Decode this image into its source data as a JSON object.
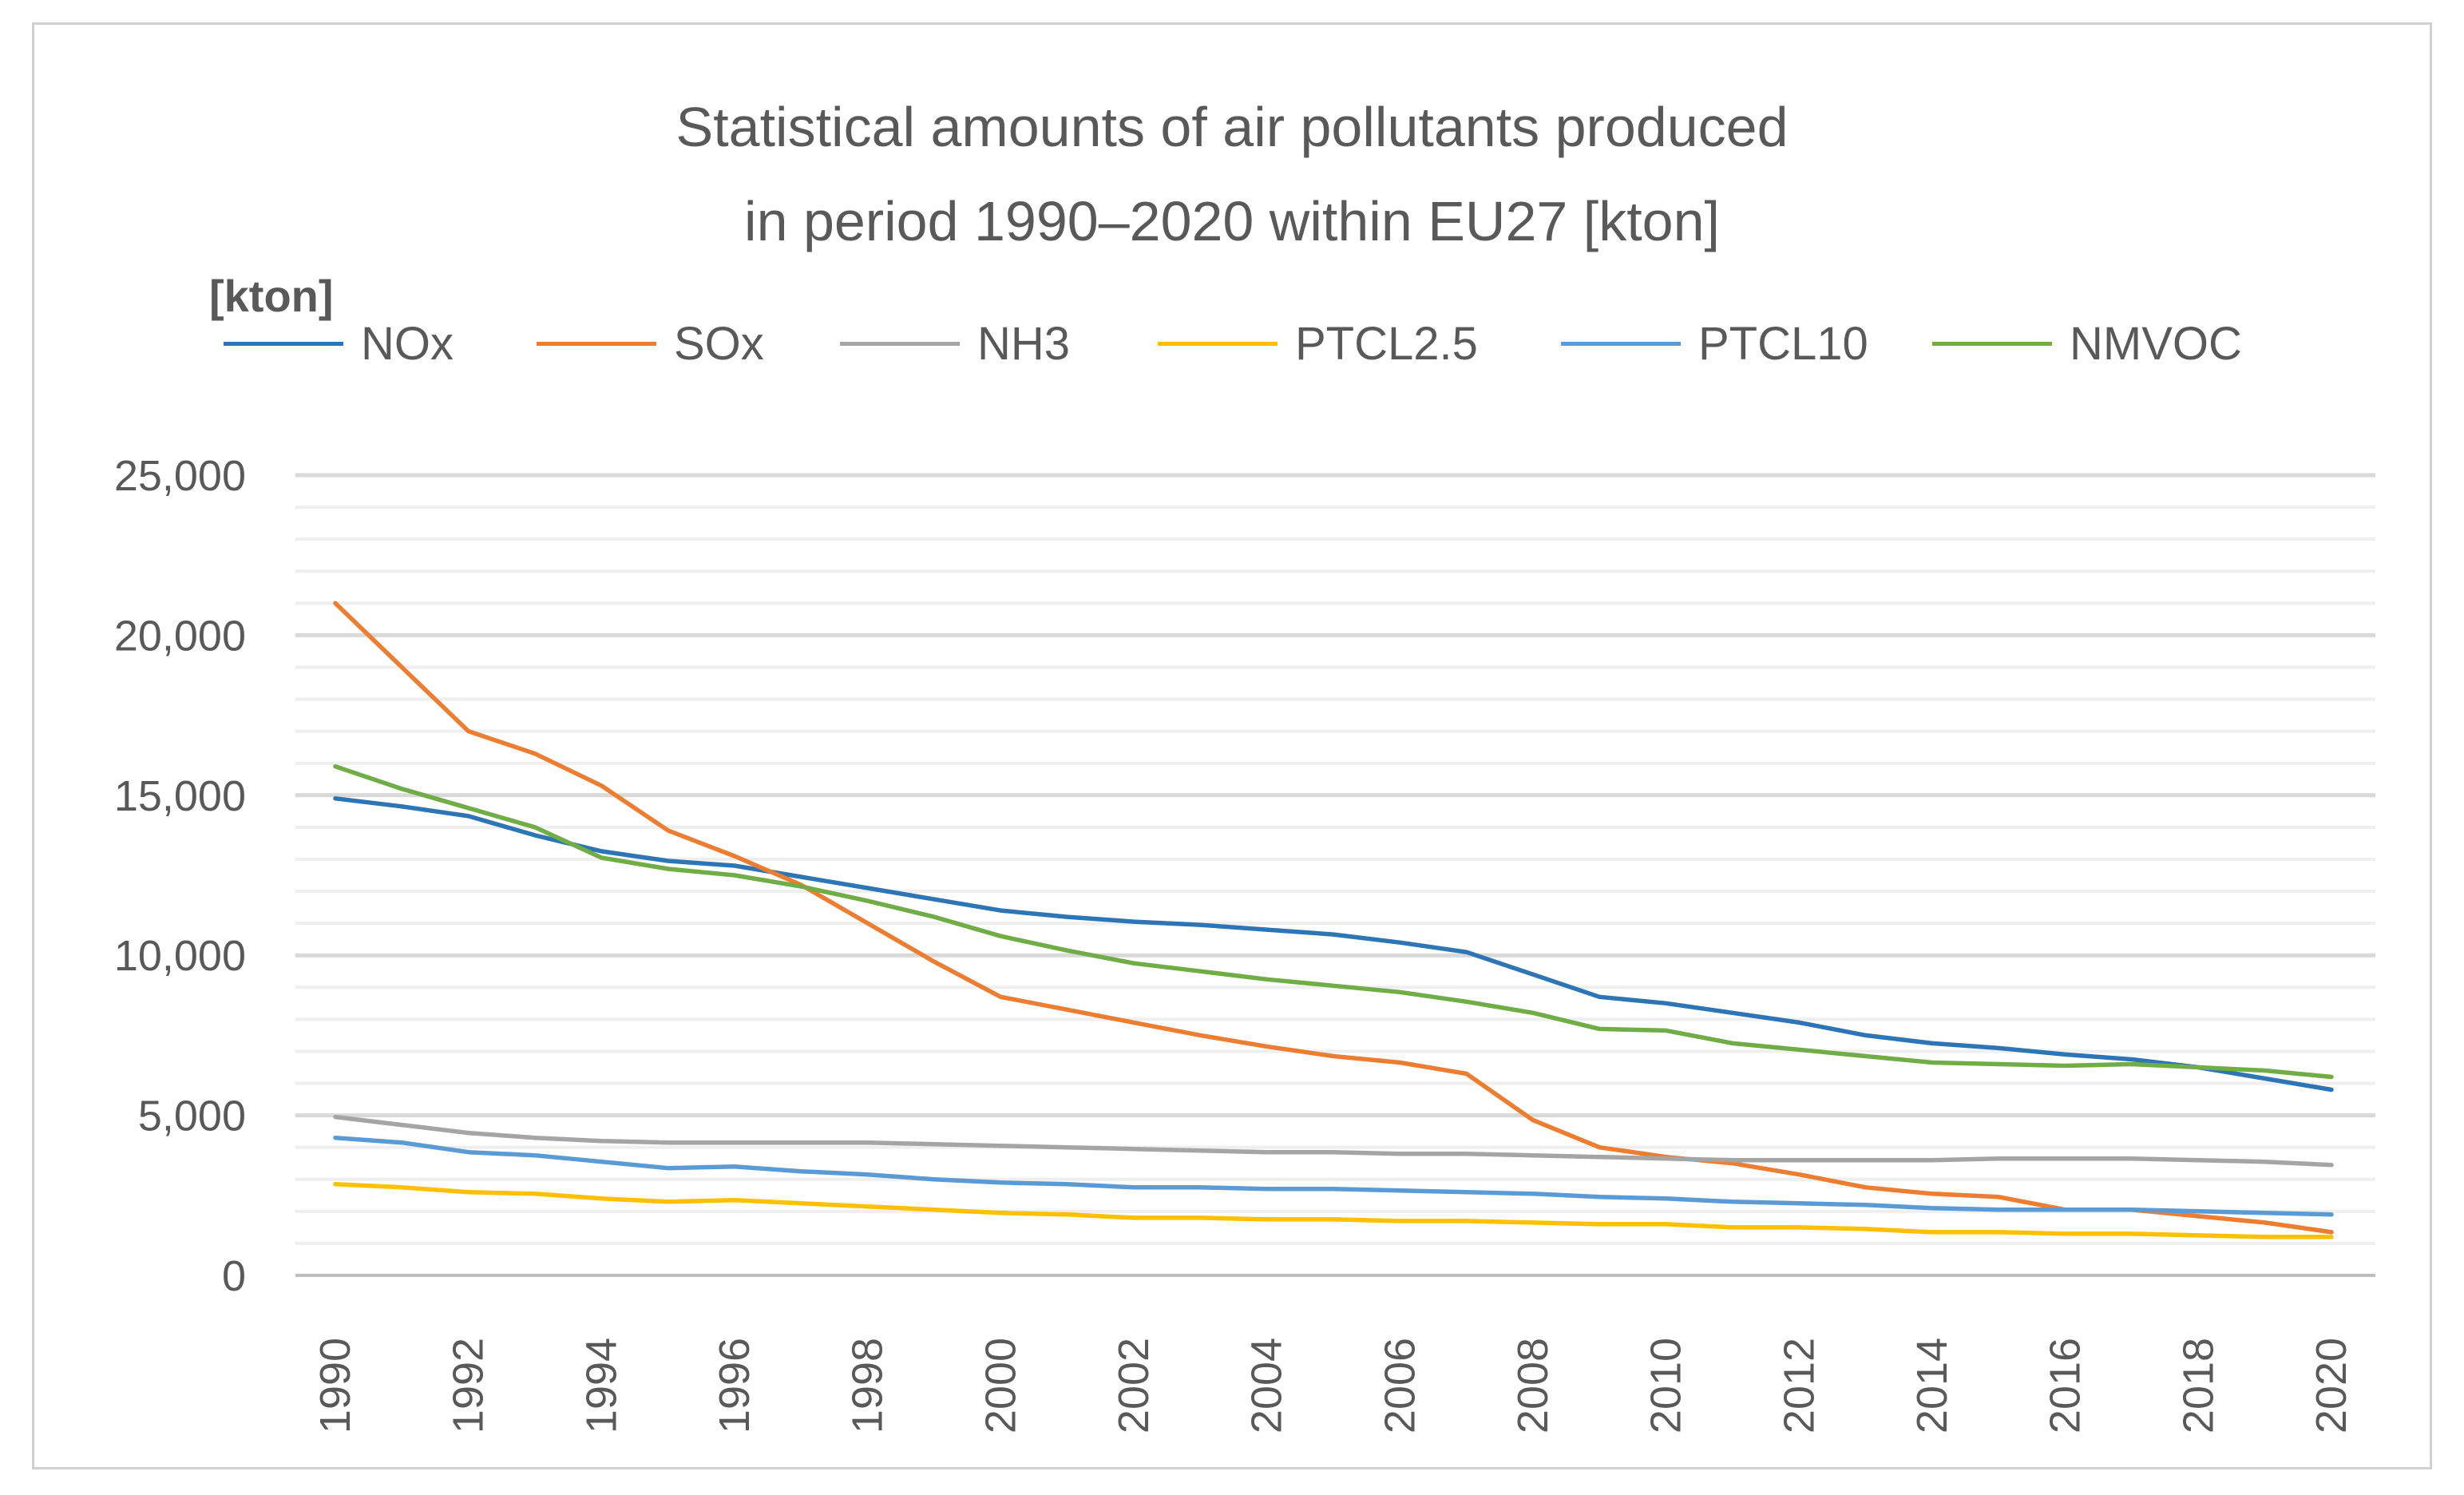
{
  "chart_data": {
    "type": "line",
    "title_lines": [
      "Statistical amounts of air pollutants produced",
      "in period 1990–2020 within EU27 [kton]"
    ],
    "ylabel": "[kton]",
    "xlabel": "",
    "ylim": [
      0,
      25000
    ],
    "yticks": [
      0,
      5000,
      10000,
      15000,
      20000,
      25000
    ],
    "ytick_labels": [
      "0",
      "5,000",
      "10,000",
      "15,000",
      "20,000",
      "25,000"
    ],
    "minor_grid_step": 1000,
    "x": [
      1990,
      1991,
      1992,
      1993,
      1994,
      1995,
      1996,
      1997,
      1998,
      1999,
      2000,
      2001,
      2002,
      2003,
      2004,
      2005,
      2006,
      2007,
      2008,
      2009,
      2010,
      2011,
      2012,
      2013,
      2014,
      2015,
      2016,
      2017,
      2018,
      2019,
      2020
    ],
    "xtick_labels": [
      "1990",
      "1992",
      "1994",
      "1996",
      "1998",
      "2000",
      "2002",
      "2004",
      "2006",
      "2008",
      "2010",
      "2012",
      "2014",
      "2016",
      "2018",
      "2020"
    ],
    "legend_position": "top",
    "series": [
      {
        "name": "NOx",
        "color": "#2e75b6",
        "values": [
          14900,
          14650,
          14350,
          13750,
          13250,
          12950,
          12800,
          12450,
          12100,
          11750,
          11400,
          11200,
          11050,
          10950,
          10800,
          10650,
          10400,
          10100,
          9400,
          8700,
          8500,
          8200,
          7900,
          7500,
          7250,
          7100,
          6900,
          6750,
          6500,
          6150,
          5800
        ]
      },
      {
        "name": "SOx",
        "color": "#ed7d31",
        "values": [
          21000,
          19000,
          17000,
          16300,
          15300,
          13900,
          13100,
          12200,
          11000,
          9800,
          8700,
          8300,
          7900,
          7500,
          7150,
          6850,
          6650,
          6300,
          4850,
          4000,
          3700,
          3500,
          3150,
          2750,
          2550,
          2450,
          2050,
          2050,
          1850,
          1650,
          1350
        ]
      },
      {
        "name": "NH3",
        "color": "#a5a5a5",
        "values": [
          4950,
          4700,
          4450,
          4300,
          4200,
          4150,
          4150,
          4150,
          4150,
          4100,
          4050,
          4000,
          3950,
          3900,
          3850,
          3850,
          3800,
          3800,
          3750,
          3700,
          3650,
          3600,
          3600,
          3600,
          3600,
          3650,
          3650,
          3650,
          3600,
          3550,
          3450
        ]
      },
      {
        "name": "PTCL2.5",
        "color": "#ffc000",
        "values": [
          2850,
          2750,
          2600,
          2550,
          2400,
          2300,
          2350,
          2250,
          2150,
          2050,
          1950,
          1900,
          1800,
          1800,
          1750,
          1750,
          1700,
          1700,
          1650,
          1600,
          1600,
          1500,
          1500,
          1450,
          1350,
          1350,
          1300,
          1300,
          1250,
          1200,
          1200
        ]
      },
      {
        "name": "PTCL10",
        "color": "#5b9bd5",
        "values": [
          4300,
          4150,
          3850,
          3750,
          3550,
          3350,
          3400,
          3250,
          3150,
          3000,
          2900,
          2850,
          2750,
          2750,
          2700,
          2700,
          2650,
          2600,
          2550,
          2450,
          2400,
          2300,
          2250,
          2200,
          2100,
          2050,
          2050,
          2050,
          2000,
          1950,
          1900
        ]
      },
      {
        "name": "NMVOC",
        "color": "#70ad47",
        "values": [
          15900,
          15200,
          14600,
          14000,
          13050,
          12700,
          12500,
          12150,
          11700,
          11200,
          10600,
          10150,
          9750,
          9500,
          9250,
          9050,
          8850,
          8550,
          8200,
          7700,
          7650,
          7250,
          7050,
          6850,
          6650,
          6600,
          6550,
          6600,
          6500,
          6400,
          6200
        ]
      }
    ]
  }
}
